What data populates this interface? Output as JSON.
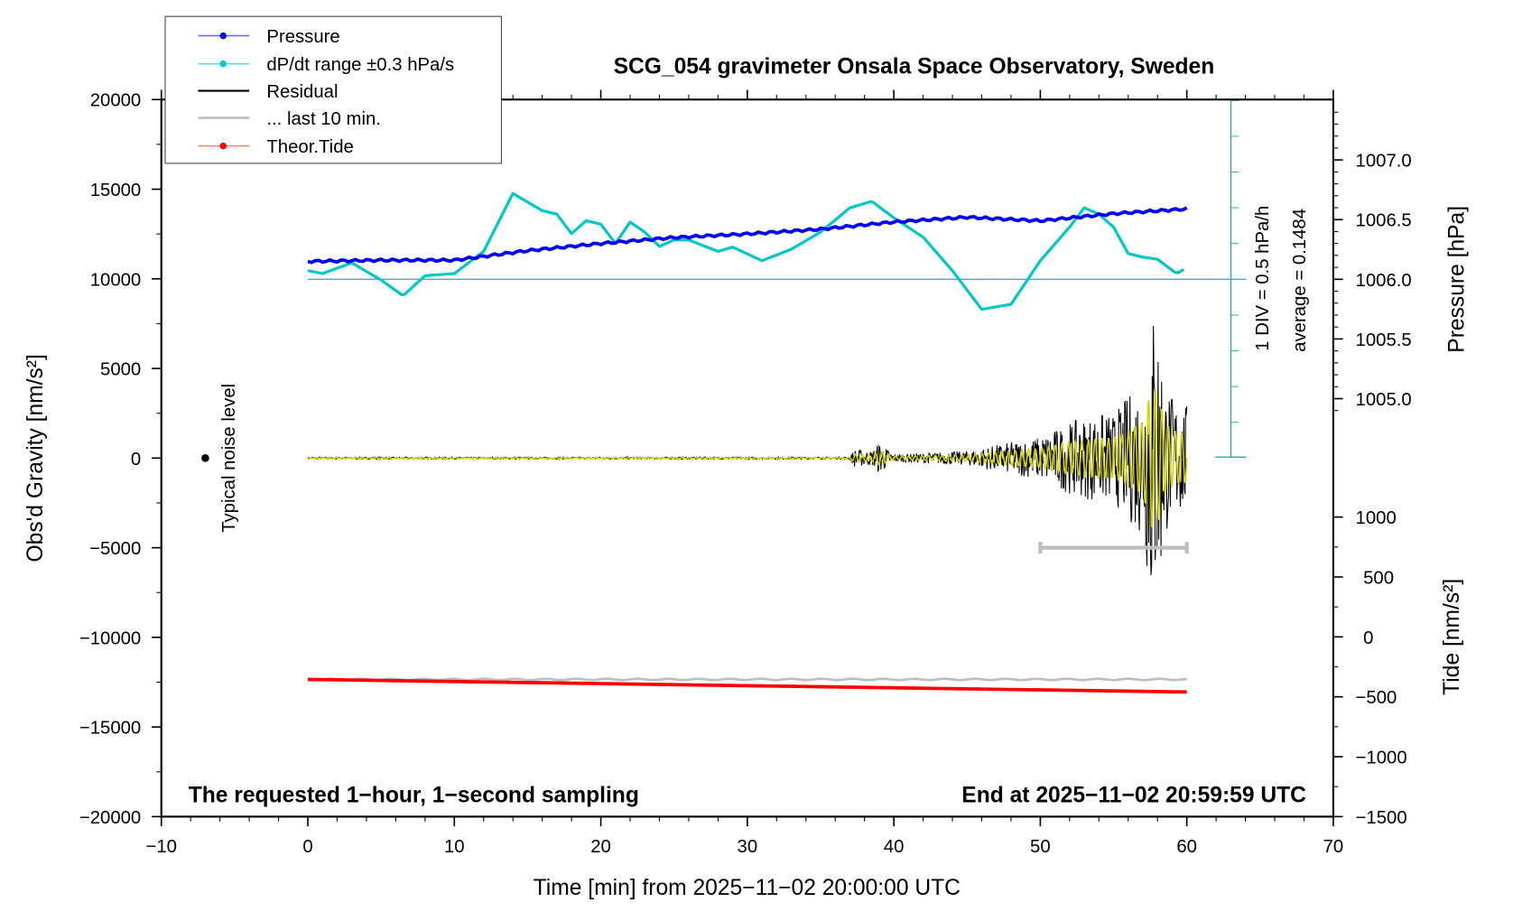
{
  "chart_data": {
    "type": "line",
    "title": "SCG_054 gravimeter Onsala Space Observatory, Sweden",
    "xlabel": "Time [min] from 2025−11−02 20:00:00 UTC",
    "ylabel_left": "Obs'd Gravity [nm/s²]",
    "ylabel_right_top": "Pressure [hPa]",
    "ylabel_right_bottom": "Tide [nm/s²]",
    "xlim": [
      -10,
      70
    ],
    "ylim_left": [
      -20000,
      20000
    ],
    "x_ticks": [
      "−10",
      "0",
      "10",
      "20",
      "30",
      "40",
      "50",
      "60",
      "70"
    ],
    "y_ticks_left": [
      "20000",
      "15000",
      "10000",
      "5000",
      "0",
      "−5000",
      "−10000",
      "−15000",
      "−20000"
    ],
    "pressure_ticks": [
      "1007.0",
      "1006.5",
      "1006.0",
      "1005.5",
      "1005.0"
    ],
    "tide_ticks": [
      "1000",
      "500",
      "0",
      "−500",
      "−1000",
      "−1500"
    ],
    "annotation_left": "The requested 1−hour, 1−second sampling",
    "annotation_right": "End at 2025−11−02 20:59:59 UTC",
    "noise_label": "Typical noise level",
    "div_label": "1 DIV = 0.5 hPa/h",
    "average_label": "average = 0.1484",
    "legend": {
      "position": "top-left",
      "entries": [
        "Pressure",
        "dP/dt range ±0.3 hPa/s",
        "Residual",
        "... last 10 min.",
        "Theor.Tide"
      ]
    },
    "colors": {
      "pressure": "#0000ff",
      "dpdt": "#00c8c8",
      "residual": "#000000",
      "residual_filtered": "#d4d400",
      "last10": "#bebebe",
      "tide": "#ff0000",
      "axis_cyan": "#40b0b0"
    },
    "series": [
      {
        "name": "Pressure",
        "unit": "hPa",
        "t": [
          0,
          5,
          10,
          15,
          20,
          25,
          30,
          35,
          40,
          45,
          50,
          55,
          60
        ],
        "values": [
          1006.15,
          1006.16,
          1006.16,
          1006.24,
          1006.3,
          1006.35,
          1006.38,
          1006.42,
          1006.48,
          1006.52,
          1006.49,
          1006.55,
          1006.59
        ]
      },
      {
        "name": "dP/dt",
        "unit": "hPa/h",
        "t": [
          0,
          1,
          3,
          5,
          6.5,
          8,
          10,
          12,
          14,
          16,
          17,
          18,
          19,
          20,
          21,
          22,
          23,
          24,
          25,
          26,
          28,
          29,
          31,
          33,
          35,
          37,
          38.5,
          40,
          42,
          44,
          46,
          48,
          50,
          52,
          53,
          54,
          55,
          56,
          57,
          58,
          59.3,
          60
        ],
        "values": [
          0.12,
          0.08,
          0.23,
          -0.01,
          -0.23,
          0.05,
          0.08,
          0.39,
          1.2,
          0.96,
          0.91,
          0.64,
          0.82,
          0.77,
          0.5,
          0.8,
          0.66,
          0.46,
          0.55,
          0.55,
          0.39,
          0.45,
          0.26,
          0.42,
          0.66,
          1.0,
          1.09,
          0.86,
          0.59,
          0.12,
          -0.42,
          -0.35,
          0.26,
          0.73,
          1.0,
          0.91,
          0.73,
          0.36,
          0.31,
          0.28,
          0.08,
          0.16
        ]
      },
      {
        "name": "Residual envelope",
        "unit": "nm/s²",
        "t": [
          0,
          37,
          37.3,
          38.5,
          39,
          40,
          45,
          48,
          50,
          52,
          54,
          55,
          56,
          57,
          57.6,
          58,
          58.5,
          59,
          60
        ],
        "values": [
          50,
          60,
          500,
          400,
          900,
          200,
          400,
          900,
          1200,
          2000,
          2500,
          2500,
          3500,
          4500,
          8700,
          8400,
          4500,
          3500,
          3000
        ]
      },
      {
        "name": "Theor.Tide",
        "unit": "nm/s²",
        "t": [
          0,
          60
        ],
        "values": [
          -355,
          -460
        ]
      },
      {
        "name": "last 10 min",
        "unit": "nm/s²",
        "t": [
          0,
          60
        ],
        "values": [
          -355,
          -355
        ]
      }
    ],
    "noise_level": {
      "t": -7,
      "value": 0
    },
    "last10_bar": {
      "t": [
        50,
        60
      ],
      "value": -5000
    }
  }
}
